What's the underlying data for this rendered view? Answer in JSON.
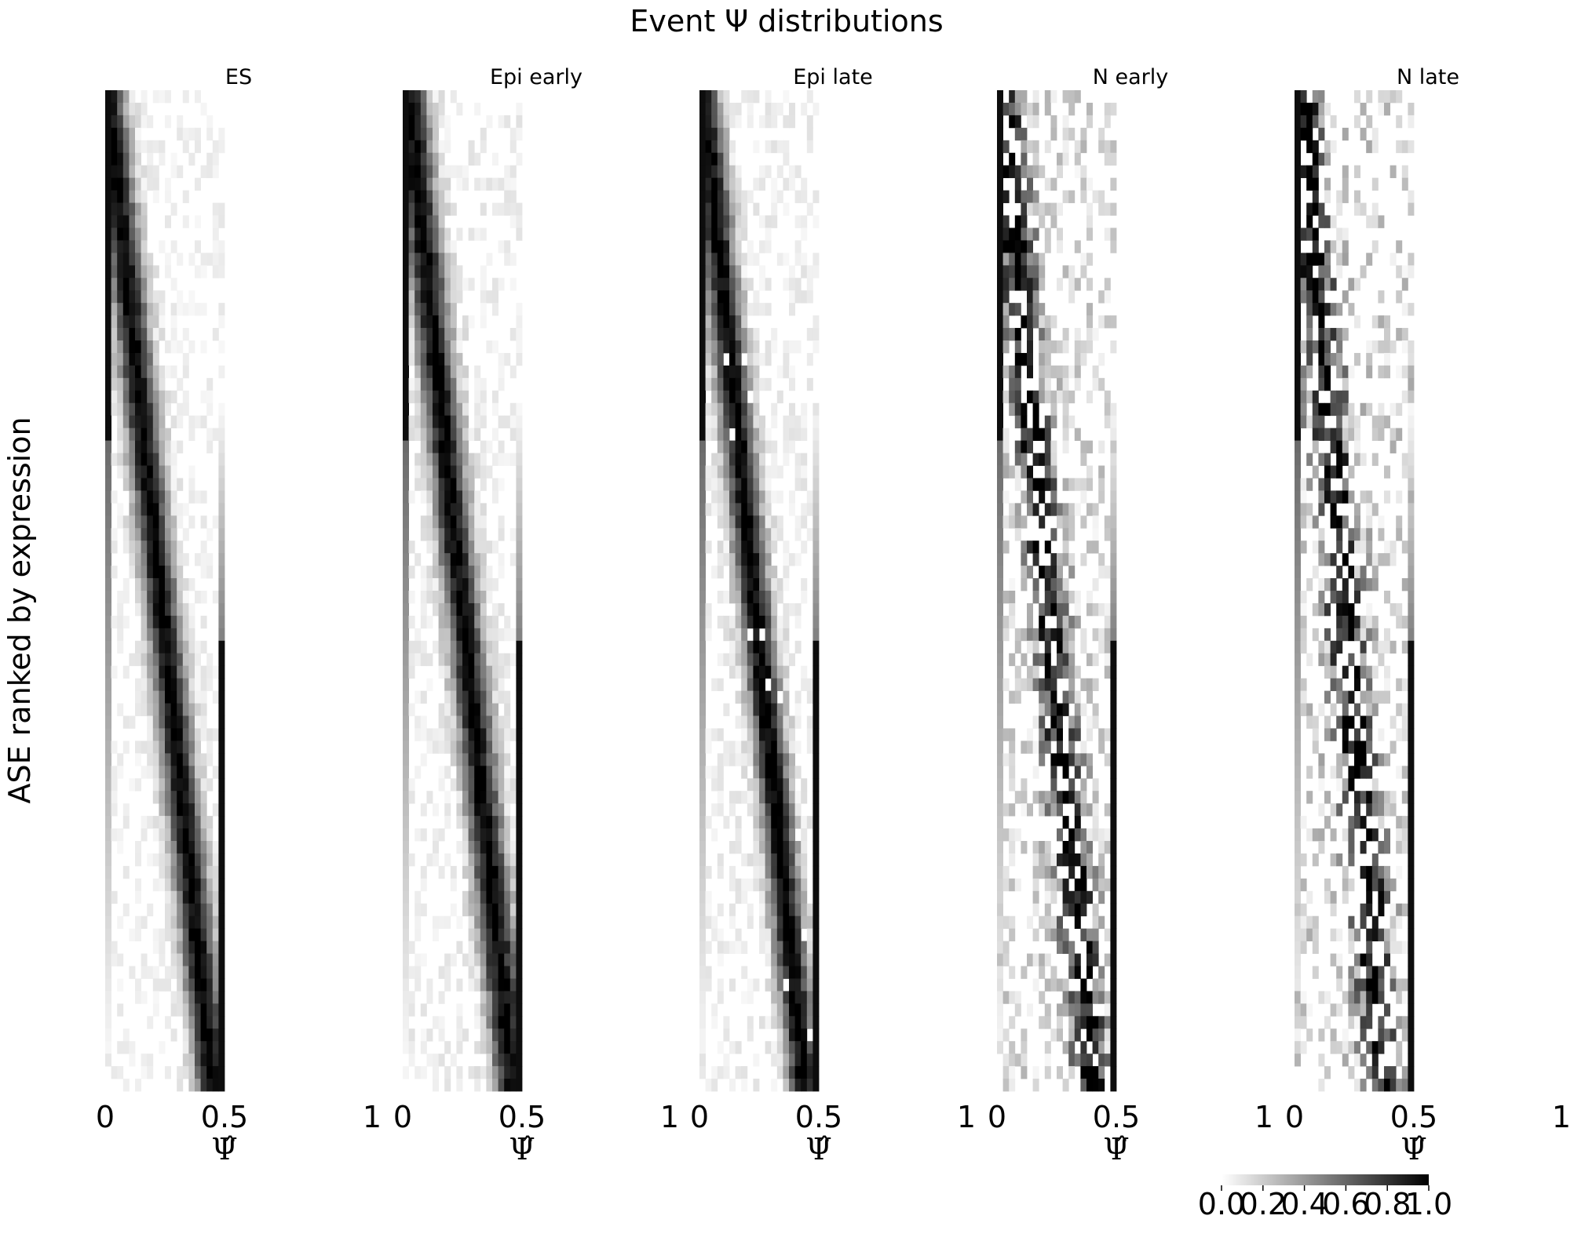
{
  "chart_data": {
    "type": "heatmap",
    "title": "Event Ψ distributions",
    "ylabel": "ASE ranked by expression",
    "xlabel": "Ψ̂",
    "x_ticks": [
      "0",
      "0.5",
      "1"
    ],
    "xlim": [
      0,
      1
    ],
    "rows_per_panel": 80,
    "bins_per_panel": 20,
    "colormap": {
      "low": "#ffffff",
      "high": "#000000"
    },
    "colorbar": {
      "ticks": [
        "0.0",
        "0.2",
        "0.4",
        "0.6",
        "0.8",
        "1.0"
      ],
      "range": [
        0.0,
        1.0
      ]
    },
    "panels": [
      {
        "name": "ES",
        "peak_start": 0.02,
        "peak_end": 0.9,
        "sharpness": 2.6,
        "noise": 0.1,
        "sparsity": 0.0
      },
      {
        "name": "Epi early",
        "peak_start": 0.05,
        "peak_end": 0.92,
        "sharpness": 2.4,
        "noise": 0.12,
        "sparsity": 0.0
      },
      {
        "name": "Epi late",
        "peak_start": 0.03,
        "peak_end": 0.88,
        "sharpness": 2.8,
        "noise": 0.12,
        "sparsity": 0.02
      },
      {
        "name": "N early",
        "peak_start": 0.05,
        "peak_end": 0.8,
        "sharpness": 2.2,
        "noise": 0.3,
        "sparsity": 0.25
      },
      {
        "name": "N late",
        "peak_start": 0.05,
        "peak_end": 0.75,
        "sharpness": 2.0,
        "noise": 0.35,
        "sparsity": 0.35
      }
    ]
  }
}
